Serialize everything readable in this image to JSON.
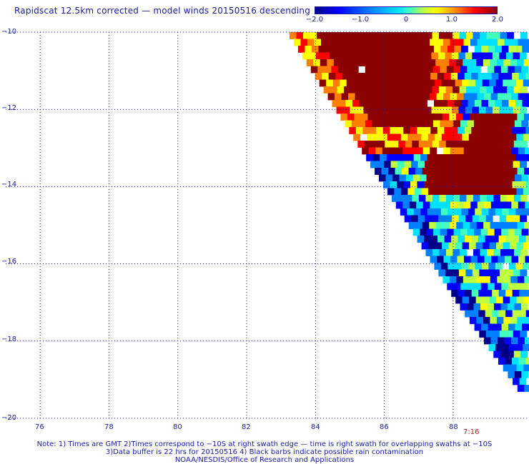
{
  "title": "Rapidscat 12.5km corrected — model winds 20150516 descending",
  "colorbar": {
    "labels": [
      "−2.0",
      "−1.0",
      "0",
      "1.0",
      "2.0"
    ],
    "values": [
      -2.0,
      -1.0,
      0,
      1.0,
      2.0
    ],
    "colors": [
      "#00008b",
      "#0000ff",
      "#0080ff",
      "#00e0ff",
      "#40ffbf",
      "#c0ff40",
      "#ffff00",
      "#ff8000",
      "#ff0000",
      "#8b0000"
    ]
  },
  "map": {
    "lon_labels": [
      "76",
      "78",
      "80",
      "82",
      "84",
      "86",
      "88"
    ],
    "lat_labels": [
      "−10",
      "−12",
      "−14",
      "−16",
      "−18",
      "−20"
    ],
    "lon_range": [
      75,
      90
    ],
    "lat_range": [
      -20,
      -10
    ],
    "grid": "dotted"
  },
  "time_label": "7:16",
  "notes": [
    "Note: 1) Times are GMT 2)Times correspond to −10S at right swath edge — time is right swath for overlapping swaths at −10S",
    "3)Data buffer is 22 hrs for 20150516 4) Black barbs indicate possible rain contamination",
    "NOAA/NESDIS/Office of Research and Applications"
  ]
}
